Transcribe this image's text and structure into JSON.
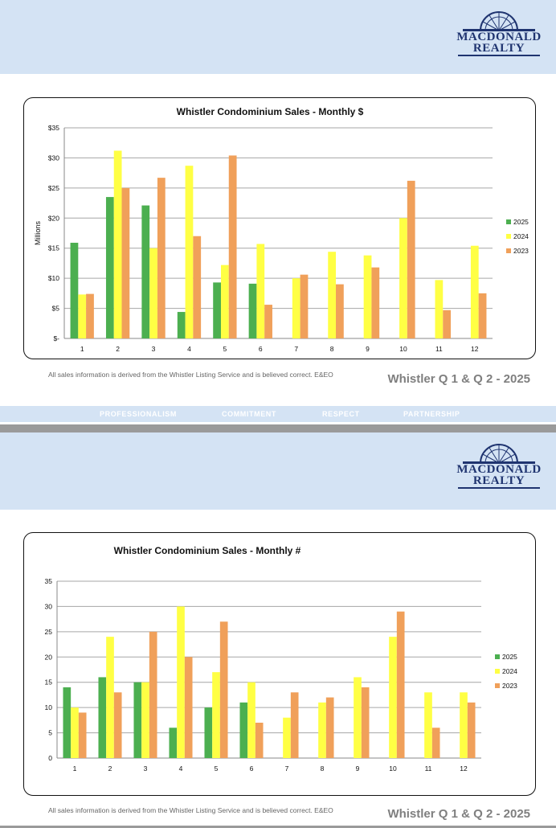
{
  "logo": {
    "line1": "MACDONALD",
    "line2": "REALTY"
  },
  "motto": [
    "PROFESSIONALISM",
    "COMMITMENT",
    "RESPECT",
    "PARTNERSHIP"
  ],
  "disclaimer": "All sales information is derived from the Whistler Listing Service and is believed correct. E&EO",
  "footer_title": "Whistler Q 1 & Q 2 - 2025",
  "colors": {
    "2025": "#4caf50",
    "2024": "#ffff44",
    "2023": "#f0a05a"
  },
  "chart_data": [
    {
      "type": "bar",
      "title": "Whistler Condominium Sales - Monthly $",
      "ylabel": "Millions",
      "xlabel": "",
      "categories": [
        "1",
        "2",
        "3",
        "4",
        "5",
        "6",
        "7",
        "8",
        "9",
        "10",
        "11",
        "12"
      ],
      "y_tick_labels": [
        "$-",
        "$5",
        "$10",
        "$15",
        "$20",
        "$25",
        "$30",
        "$35"
      ],
      "ylim": [
        0,
        35
      ],
      "grid": true,
      "legend": "right",
      "series": [
        {
          "name": "2025",
          "values": [
            15.9,
            23.5,
            22.1,
            4.4,
            9.3,
            9.1,
            null,
            null,
            null,
            null,
            null,
            null
          ]
        },
        {
          "name": "2024",
          "values": [
            7.3,
            31.2,
            15.0,
            28.7,
            12.2,
            15.7,
            10.0,
            14.4,
            13.8,
            20.0,
            9.7,
            15.4
          ]
        },
        {
          "name": "2023",
          "values": [
            7.4,
            25.0,
            26.7,
            17.0,
            30.4,
            5.6,
            10.6,
            9.0,
            11.8,
            26.2,
            4.7,
            7.5
          ]
        }
      ]
    },
    {
      "type": "bar",
      "title": "Whistler Condominium Sales - Monthly #",
      "ylabel": "",
      "xlabel": "",
      "categories": [
        "1",
        "2",
        "3",
        "4",
        "5",
        "6",
        "7",
        "8",
        "9",
        "10",
        "11",
        "12"
      ],
      "y_tick_labels": [
        "0",
        "5",
        "10",
        "15",
        "20",
        "25",
        "30",
        "35"
      ],
      "ylim": [
        0,
        35
      ],
      "grid": true,
      "legend": "right",
      "series": [
        {
          "name": "2025",
          "values": [
            14,
            16,
            15,
            6,
            10,
            11,
            null,
            null,
            null,
            null,
            null,
            null
          ]
        },
        {
          "name": "2024",
          "values": [
            10,
            24,
            15,
            30,
            17,
            15,
            8,
            11,
            16,
            24,
            13,
            13
          ]
        },
        {
          "name": "2023",
          "values": [
            9,
            13,
            25,
            20,
            27,
            7,
            13,
            12,
            14,
            29,
            6,
            11
          ]
        }
      ]
    }
  ]
}
